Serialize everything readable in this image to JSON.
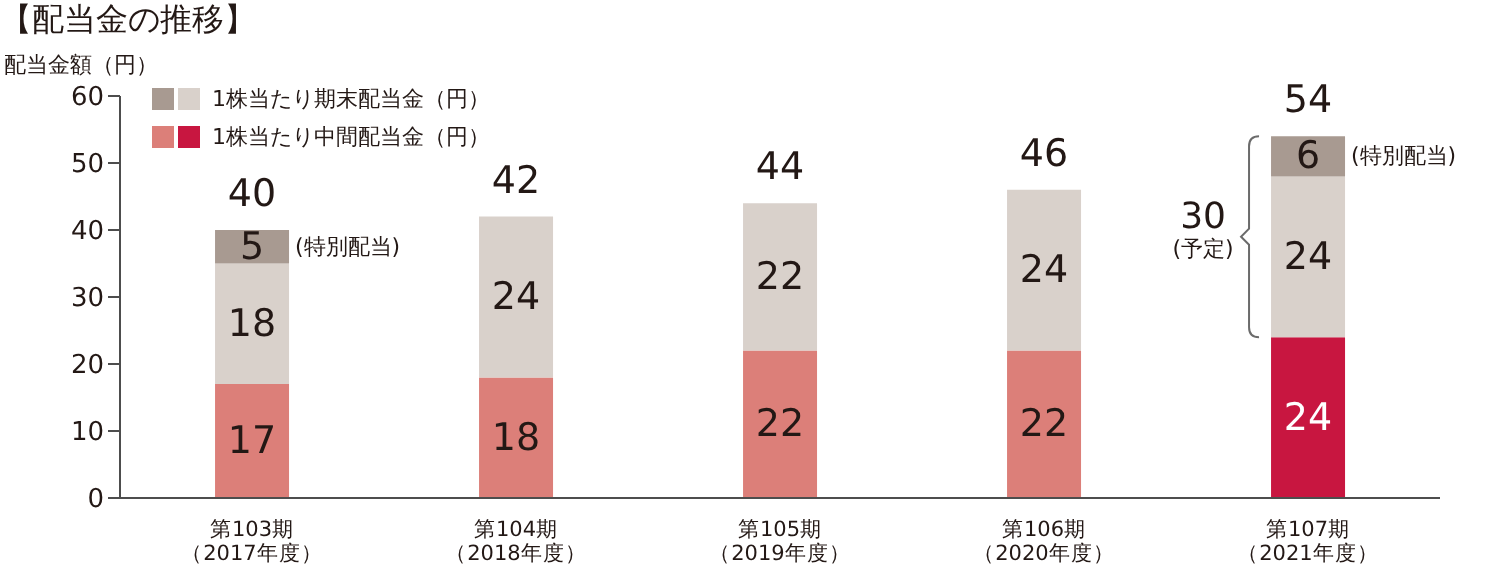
{
  "chart_data": {
    "type": "bar",
    "title": "【配当金の推移】",
    "ylabel": "配当金額（円）",
    "categories": [
      "第103期（2017年度）",
      "第104期（2018年度）",
      "第105期（2019年度）",
      "第106期（2020年度）",
      "第107期（2021年度）"
    ],
    "stacked": true,
    "series": [
      {
        "name": "1株当たり中間配当金（円）",
        "color": "#dc7f79",
        "colors": [
          "#dc7f79",
          "#dc7f79",
          "#dc7f79",
          "#dc7f79",
          "#c81640"
        ],
        "values": [
          17,
          18,
          22,
          22,
          24
        ]
      },
      {
        "name": "1株当たり期末配当金（円）",
        "color": "#d9d1cb",
        "values": [
          18,
          24,
          22,
          24,
          24
        ]
      },
      {
        "color": "#a89a91",
        "values": [
          5,
          null,
          null,
          null,
          6
        ]
      }
    ],
    "data_labels": true,
    "totals": [
      "40",
      "42",
      "44",
      "46",
      "54"
    ],
    "annotations": [
      {
        "text": "(特別配当)",
        "x": "第103期（2017年度）",
        "y": 40
      },
      {
        "text": "(特別配当)",
        "x": "第107期（2021年度）",
        "y": 54
      },
      "30",
      "(予定)"
    ],
    "ylim": [
      0,
      60
    ],
    "yticks": [
      0,
      10,
      20,
      30,
      40,
      50,
      60
    ],
    "grid": false,
    "legend": "top left"
  }
}
